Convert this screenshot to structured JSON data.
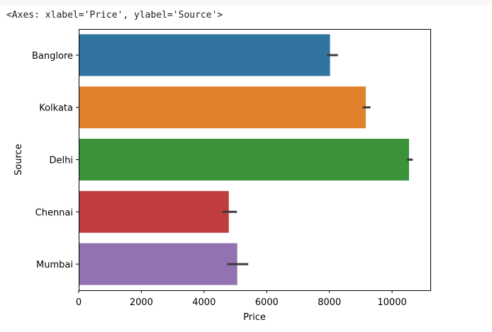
{
  "output_text": "<Axes: xlabel='Price', ylabel='Source'>",
  "chart_data": {
    "type": "bar",
    "orientation": "horizontal",
    "xlabel": "Price",
    "ylabel": "Source",
    "categories": [
      "Banglore",
      "Kolkata",
      "Delhi",
      "Chennai",
      "Mumbai"
    ],
    "values": [
      8020,
      9160,
      10540,
      4790,
      5060
    ],
    "error_bars": [
      [
        7920,
        8270
      ],
      [
        9060,
        9310
      ],
      [
        10470,
        10660
      ],
      [
        4580,
        5050
      ],
      [
        4740,
        5410
      ]
    ],
    "colors": [
      "#3274a1",
      "#e1812c",
      "#3a923a",
      "#c03d3e",
      "#9372b2"
    ],
    "xlim": [
      0,
      11220
    ],
    "xticks": [
      0,
      2000,
      4000,
      6000,
      8000,
      10000
    ],
    "xtick_labels": [
      "0",
      "2000",
      "4000",
      "6000",
      "8000",
      "10000"
    ],
    "grid": false,
    "legend": "none"
  }
}
